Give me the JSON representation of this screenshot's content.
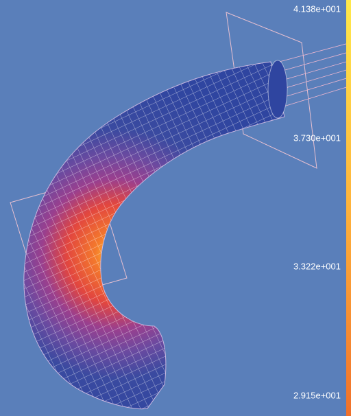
{
  "legend": {
    "labels": [
      "4.138e+001",
      "3.730e+001",
      "3.322e+001",
      "2.915e+001"
    ]
  }
}
